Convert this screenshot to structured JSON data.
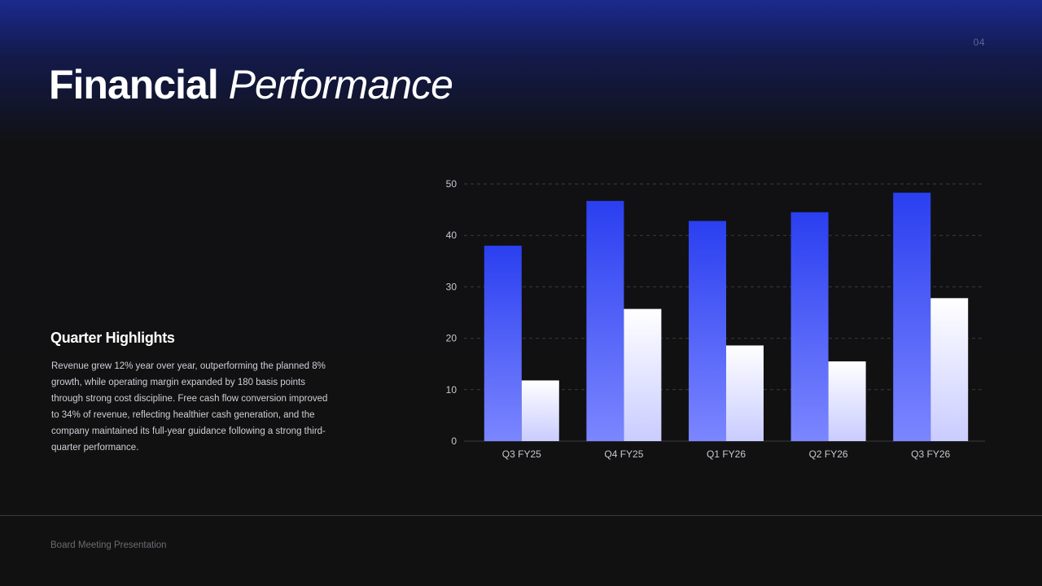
{
  "slide": {
    "page_number": "04",
    "title_bold": "Financial",
    "title_italic": "Performance",
    "footer": "Board Meeting Presentation"
  },
  "highlights": {
    "heading": "Quarter Highlights",
    "body": "Revenue grew 12% year over year, outperforming the planned 8% growth, while operating margin expanded by 180 basis points through strong cost discipline. Free cash flow conversion improved to 34% of revenue, reflecting healthier cash generation, and the company maintained its full-year guidance following a strong third-quarter performance."
  },
  "colors": {
    "accent_blue_top": "#2a3ff0",
    "accent_blue_bottom": "#7b86ff",
    "white_top": "#ffffff",
    "white_bottom": "#c9ccff"
  },
  "chart_data": {
    "type": "bar",
    "categories": [
      "Q3 FY25",
      "Q4 FY25",
      "Q1 FY26",
      "Q2 FY26",
      "Q3 FY26"
    ],
    "series": [
      {
        "values": [
          38,
          46.7,
          42.8,
          44.5,
          48.3
        ],
        "color": "blue-gradient"
      },
      {
        "values": [
          11.8,
          25.7,
          18.6,
          15.5,
          27.8
        ],
        "color": "white-gradient"
      }
    ],
    "y_ticks": [
      "0",
      "10",
      "20",
      "30",
      "40",
      "50"
    ],
    "ylim": [
      0,
      50
    ],
    "grid": true,
    "legend": "none",
    "title": "",
    "xlabel": "",
    "ylabel": ""
  }
}
